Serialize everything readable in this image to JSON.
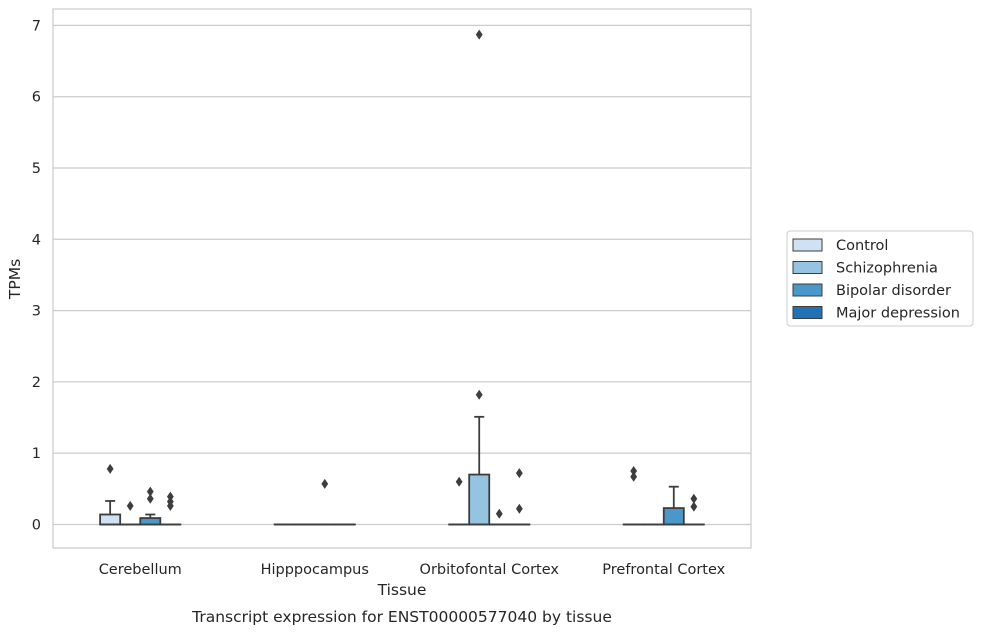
{
  "chart_data": {
    "type": "box",
    "caption": "Transcript expression for ENST00000577040 by tissue",
    "xlabel": "Tissue",
    "ylabel": "TPMs",
    "ylim": [
      -0.33,
      7.23
    ],
    "yticks": [
      0,
      1,
      2,
      3,
      4,
      5,
      6,
      7
    ],
    "grid": "horizontal",
    "legend_position": "right",
    "categories": [
      "Cerebellum",
      "Hipppocampus",
      "Orbitofontal Cortex",
      "Prefrontal Cortex"
    ],
    "series": [
      {
        "name": "Control",
        "color": "#d0e1f2",
        "boxes": [
          {
            "q1": 0,
            "median": 0,
            "q3": 0.14,
            "whisker_low": 0,
            "whisker_high": 0.33,
            "outliers": [
              0.78
            ]
          },
          {
            "q1": 0,
            "median": 0,
            "q3": 0,
            "whisker_low": 0,
            "whisker_high": 0,
            "outliers": []
          },
          {
            "q1": 0,
            "median": 0,
            "q3": 0,
            "whisker_low": 0,
            "whisker_high": 0,
            "outliers": [
              0.6
            ]
          },
          {
            "q1": 0,
            "median": 0,
            "q3": 0,
            "whisker_low": 0,
            "whisker_high": 0,
            "outliers": [
              0.75,
              0.67
            ]
          }
        ]
      },
      {
        "name": "Schizophrenia",
        "color": "#94c4df",
        "boxes": [
          {
            "q1": 0,
            "median": 0,
            "q3": 0,
            "whisker_low": 0,
            "whisker_high": 0,
            "outliers": [
              0.26
            ]
          },
          {
            "q1": 0,
            "median": 0,
            "q3": 0,
            "whisker_low": 0,
            "whisker_high": 0,
            "outliers": []
          },
          {
            "q1": 0,
            "median": 0,
            "q3": 0.7,
            "whisker_low": 0,
            "whisker_high": 1.51,
            "outliers": [
              1.82,
              6.87
            ]
          },
          {
            "q1": 0,
            "median": 0,
            "q3": 0,
            "whisker_low": 0,
            "whisker_high": 0,
            "outliers": []
          }
        ]
      },
      {
        "name": "Bipolar disorder",
        "color": "#4a98c9",
        "boxes": [
          {
            "q1": 0,
            "median": 0,
            "q3": 0.09,
            "whisker_low": 0,
            "whisker_high": 0.14,
            "outliers": [
              0.46,
              0.36
            ]
          },
          {
            "q1": 0,
            "median": 0,
            "q3": 0,
            "whisker_low": 0,
            "whisker_high": 0,
            "outliers": [
              0.57
            ]
          },
          {
            "q1": 0,
            "median": 0,
            "q3": 0,
            "whisker_low": 0,
            "whisker_high": 0,
            "outliers": [
              0.15
            ]
          },
          {
            "q1": 0,
            "median": 0,
            "q3": 0.23,
            "whisker_low": 0,
            "whisker_high": 0.53,
            "outliers": []
          }
        ]
      },
      {
        "name": "Major depression",
        "color": "#2171b5",
        "boxes": [
          {
            "q1": 0,
            "median": 0,
            "q3": 0,
            "whisker_low": 0,
            "whisker_high": 0,
            "outliers": [
              0.39,
              0.32,
              0.26
            ]
          },
          {
            "q1": 0,
            "median": 0,
            "q3": 0,
            "whisker_low": 0,
            "whisker_high": 0,
            "outliers": []
          },
          {
            "q1": 0,
            "median": 0,
            "q3": 0,
            "whisker_low": 0,
            "whisker_high": 0,
            "outliers": [
              0.72,
              0.22
            ]
          },
          {
            "q1": 0,
            "median": 0,
            "q3": 0,
            "whisker_low": 0,
            "whisker_high": 0,
            "outliers": [
              0.36,
              0.25
            ]
          }
        ]
      }
    ],
    "styles": {
      "grid_color": "#cccccc",
      "frame_color": "#cccccc",
      "box_edge_color": "#3d3d3d",
      "outlier_color": "#3d3d3d"
    }
  }
}
